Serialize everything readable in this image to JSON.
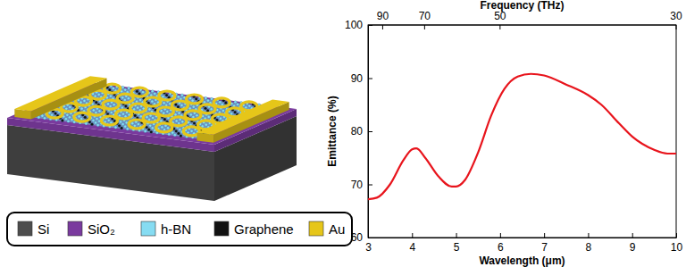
{
  "chart_data": {
    "type": "line",
    "x_label": "Wavelength (μm)",
    "y_label": "Emittance (%)",
    "x2_label": "Frequency (THz)",
    "x": [
      3.0,
      3.2,
      3.5,
      3.8,
      4.0,
      4.1,
      4.3,
      4.6,
      4.9,
      5.0,
      5.2,
      5.5,
      5.8,
      6.1,
      6.4,
      6.7,
      7.0,
      7.5,
      8.0,
      8.3,
      8.7,
      9.0,
      9.5,
      9.8,
      10.0
    ],
    "values": [
      67.2,
      67.5,
      70.0,
      74.5,
      76.6,
      76.8,
      75.0,
      71.5,
      69.6,
      69.6,
      70.8,
      76.0,
      83.0,
      88.0,
      90.3,
      90.8,
      90.5,
      88.8,
      86.8,
      85.0,
      81.5,
      79.0,
      76.5,
      75.8,
      75.8
    ],
    "color": "#e8141c",
    "xlim": [
      3,
      10
    ],
    "xticks": [
      3,
      4,
      5,
      6,
      7,
      8,
      9,
      10
    ],
    "ylim": [
      60,
      100
    ],
    "yticks": [
      60,
      70,
      80,
      90,
      100
    ],
    "x2lim": [
      100,
      30
    ],
    "x2ticks": [
      90,
      70,
      50,
      30
    ]
  },
  "illustration": {
    "legend": [
      {
        "label": "Si",
        "color": "#4d4d4d"
      },
      {
        "label": "SiO₂",
        "color": "#7a3a9e"
      },
      {
        "label": "h-BN",
        "color": "#86dcf2"
      },
      {
        "label": "Graphene",
        "color": "#111111"
      },
      {
        "label": "Au",
        "color": "#e6c619"
      }
    ]
  }
}
